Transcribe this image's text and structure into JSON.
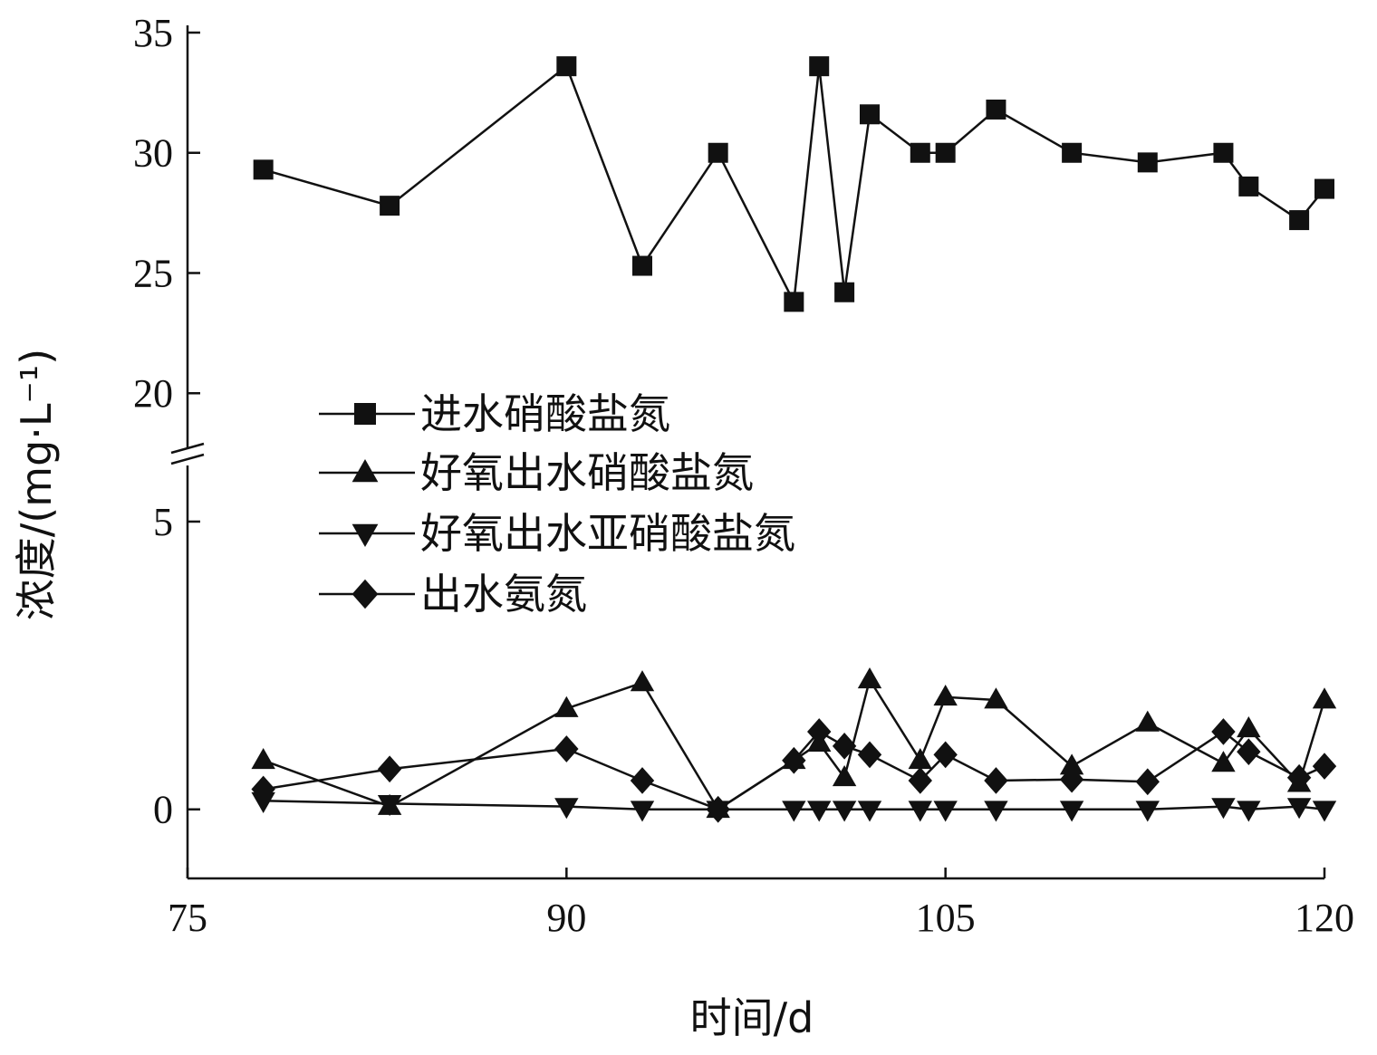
{
  "chart_data": {
    "type": "line",
    "xlabel": "时间/d",
    "ylabel": "浓度/(mg·L⁻¹)",
    "xlim": [
      75,
      120
    ],
    "xticks": [
      75,
      90,
      105,
      120
    ],
    "ylim_lower": [
      -1.2,
      6.4
    ],
    "ylim_upper": [
      17.9,
      35
    ],
    "yticks_lower": [
      0,
      5
    ],
    "yticks_upper": [
      20,
      25,
      30,
      35
    ],
    "axis_break": true,
    "grid": false,
    "legend_position": "center-left",
    "series": [
      {
        "name": "进水硝酸盐氮",
        "marker": "square",
        "points": [
          [
            78,
            29.3
          ],
          [
            83,
            27.8
          ],
          [
            90,
            33.6
          ],
          [
            93,
            25.3
          ],
          [
            96,
            30.0
          ],
          [
            99,
            23.8
          ],
          [
            100,
            33.6
          ],
          [
            101,
            24.2
          ],
          [
            102,
            31.6
          ],
          [
            104,
            30.0
          ],
          [
            105,
            30.0
          ],
          [
            107,
            31.8
          ],
          [
            110,
            30.0
          ],
          [
            113,
            29.6
          ],
          [
            116,
            30.0
          ],
          [
            117,
            28.6
          ],
          [
            119,
            27.2
          ],
          [
            120,
            28.5
          ]
        ]
      },
      {
        "name": "好氧出水硝酸盐氮",
        "marker": "triangle-up",
        "points": [
          [
            78,
            0.85
          ],
          [
            83,
            0.05
          ],
          [
            90,
            1.75
          ],
          [
            93,
            2.2
          ],
          [
            96,
            0.0
          ],
          [
            99,
            0.85
          ],
          [
            100,
            1.15
          ],
          [
            101,
            0.55
          ],
          [
            102,
            2.25
          ],
          [
            104,
            0.85
          ],
          [
            105,
            1.95
          ],
          [
            107,
            1.9
          ],
          [
            110,
            0.75
          ],
          [
            113,
            1.5
          ],
          [
            116,
            0.8
          ],
          [
            117,
            1.4
          ],
          [
            119,
            0.45
          ],
          [
            120,
            1.9
          ]
        ]
      },
      {
        "name": "好氧出水亚硝酸盐氮",
        "marker": "triangle-down",
        "points": [
          [
            78,
            0.15
          ],
          [
            83,
            0.1
          ],
          [
            90,
            0.05
          ],
          [
            93,
            0.0
          ],
          [
            96,
            0.0
          ],
          [
            99,
            0.0
          ],
          [
            100,
            0.0
          ],
          [
            101,
            0.0
          ],
          [
            102,
            0.0
          ],
          [
            104,
            0.0
          ],
          [
            105,
            0.0
          ],
          [
            107,
            0.0
          ],
          [
            110,
            0.0
          ],
          [
            113,
            0.0
          ],
          [
            116,
            0.05
          ],
          [
            117,
            0.0
          ],
          [
            119,
            0.05
          ],
          [
            120,
            0.0
          ]
        ]
      },
      {
        "name": "出水氨氮",
        "marker": "diamond",
        "points": [
          [
            78,
            0.35
          ],
          [
            83,
            0.7
          ],
          [
            90,
            1.05
          ],
          [
            93,
            0.5
          ],
          [
            96,
            0.0
          ],
          [
            99,
            0.85
          ],
          [
            100,
            1.35
          ],
          [
            101,
            1.1
          ],
          [
            102,
            0.95
          ],
          [
            104,
            0.5
          ],
          [
            105,
            0.95
          ],
          [
            107,
            0.5
          ],
          [
            110,
            0.52
          ],
          [
            113,
            0.48
          ],
          [
            116,
            1.35
          ],
          [
            117,
            1.0
          ],
          [
            119,
            0.55
          ],
          [
            120,
            0.75
          ]
        ]
      }
    ]
  }
}
